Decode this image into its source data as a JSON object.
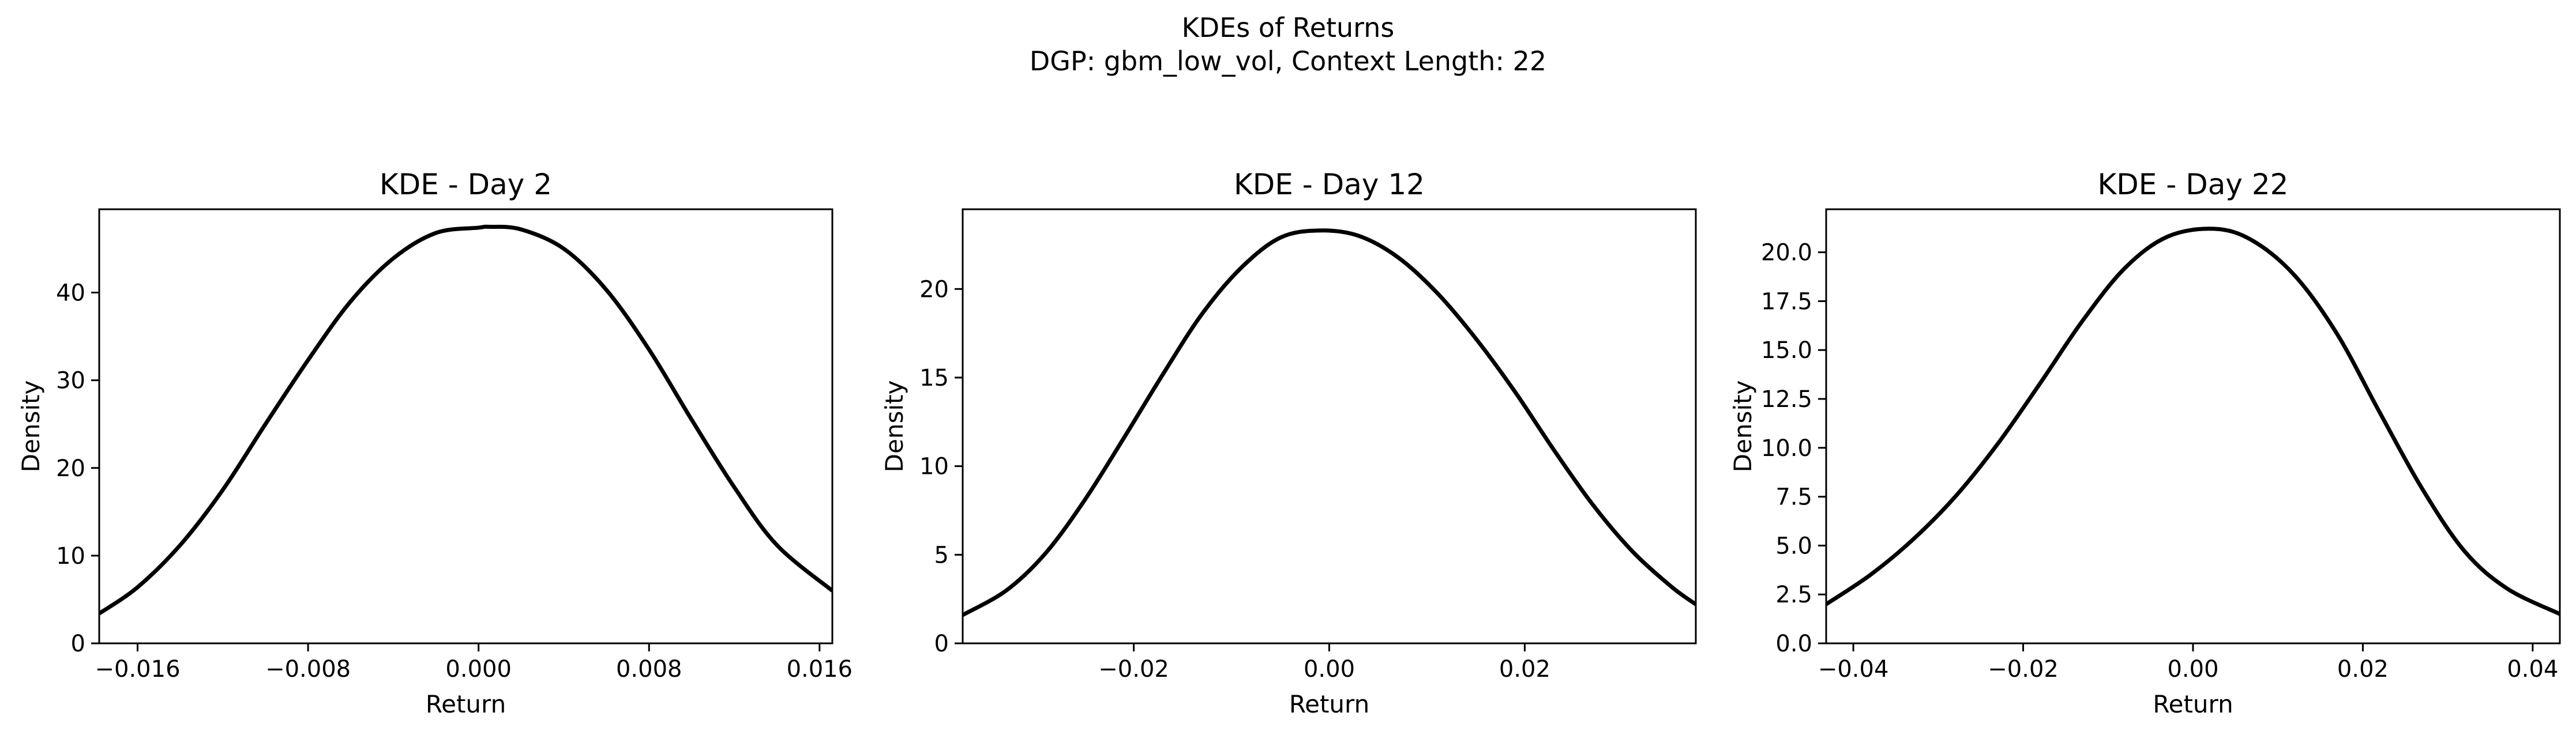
{
  "figure": {
    "title_line1": "KDEs of Returns",
    "title_line2": "DGP: gbm_low_vol, Context Length: 22"
  },
  "chart_data": [
    {
      "type": "line",
      "title": "KDE - Day 2",
      "xlabel": "Return",
      "ylabel": "Density",
      "xlim": [
        -0.0178,
        0.0166
      ],
      "ylim": [
        0,
        49.5
      ],
      "xticks": [
        -0.016,
        -0.008,
        0.0,
        0.008,
        0.016
      ],
      "xtick_labels": [
        "−0.016",
        "−0.008",
        "0.000",
        "0.008",
        "0.016"
      ],
      "yticks": [
        0,
        10,
        20,
        30,
        40
      ],
      "ytick_labels": [
        "0",
        "10",
        "20",
        "30",
        "40"
      ],
      "grid": false,
      "legend": "none",
      "color": "#000000",
      "series": [
        {
          "x": [
            -0.0178,
            -0.016,
            -0.014,
            -0.012,
            -0.01,
            -0.008,
            -0.006,
            -0.004,
            -0.002,
            0.0,
            0.0005,
            0.002,
            0.004,
            0.006,
            0.008,
            0.01,
            0.012,
            0.014,
            0.0166
          ],
          "y": [
            3.4,
            6.4,
            11.2,
            17.5,
            25.0,
            32.3,
            39.0,
            43.9,
            46.8,
            47.4,
            47.5,
            47.2,
            45.0,
            40.3,
            33.5,
            25.5,
            17.8,
            11.2,
            6.0
          ]
        }
      ]
    },
    {
      "type": "line",
      "title": "KDE - Day 12",
      "xlabel": "Return",
      "ylabel": "Density",
      "xlim": [
        -0.0375,
        0.0375
      ],
      "ylim": [
        0,
        24.5
      ],
      "xticks": [
        -0.02,
        0.0,
        0.02
      ],
      "xtick_labels": [
        "−0.02",
        "0.00",
        "0.02"
      ],
      "yticks": [
        0,
        5,
        10,
        15,
        20
      ],
      "ytick_labels": [
        "0",
        "5",
        "10",
        "15",
        "20"
      ],
      "grid": false,
      "legend": "none",
      "color": "#000000",
      "series": [
        {
          "x": [
            -0.0375,
            -0.033,
            -0.029,
            -0.025,
            -0.021,
            -0.017,
            -0.013,
            -0.009,
            -0.005,
            -0.001,
            0.003,
            0.007,
            0.011,
            0.015,
            0.019,
            0.023,
            0.027,
            0.031,
            0.035,
            0.0375
          ],
          "y": [
            1.6,
            3.0,
            5.1,
            8.1,
            11.6,
            15.2,
            18.6,
            21.2,
            22.9,
            23.3,
            23.0,
            21.8,
            19.8,
            17.2,
            14.2,
            10.9,
            7.8,
            5.2,
            3.2,
            2.2
          ]
        }
      ]
    },
    {
      "type": "line",
      "title": "KDE - Day 22",
      "xlabel": "Return",
      "ylabel": "Density",
      "xlim": [
        -0.0432,
        0.0432
      ],
      "ylim": [
        0,
        22.2
      ],
      "xticks": [
        -0.04,
        -0.02,
        0.0,
        0.02,
        0.04
      ],
      "xtick_labels": [
        "−0.04",
        "−0.02",
        "0.00",
        "0.02",
        "0.04"
      ],
      "yticks": [
        0.0,
        2.5,
        5.0,
        7.5,
        10.0,
        12.5,
        15.0,
        17.5,
        20.0
      ],
      "ytick_labels": [
        "0.0",
        "2.5",
        "5.0",
        "7.5",
        "10.0",
        "12.5",
        "15.0",
        "17.5",
        "20.0"
      ],
      "grid": false,
      "legend": "none",
      "color": "#000000",
      "series": [
        {
          "x": [
            -0.0432,
            -0.038,
            -0.033,
            -0.028,
            -0.023,
            -0.018,
            -0.013,
            -0.008,
            -0.003,
            0.0025,
            0.007,
            0.012,
            0.017,
            0.022,
            0.027,
            0.032,
            0.037,
            0.0432
          ],
          "y": [
            2.0,
            3.5,
            5.3,
            7.5,
            10.2,
            13.3,
            16.5,
            19.2,
            20.8,
            21.2,
            20.6,
            18.8,
            15.8,
            11.8,
            7.9,
            4.7,
            2.8,
            1.5
          ]
        }
      ]
    }
  ]
}
